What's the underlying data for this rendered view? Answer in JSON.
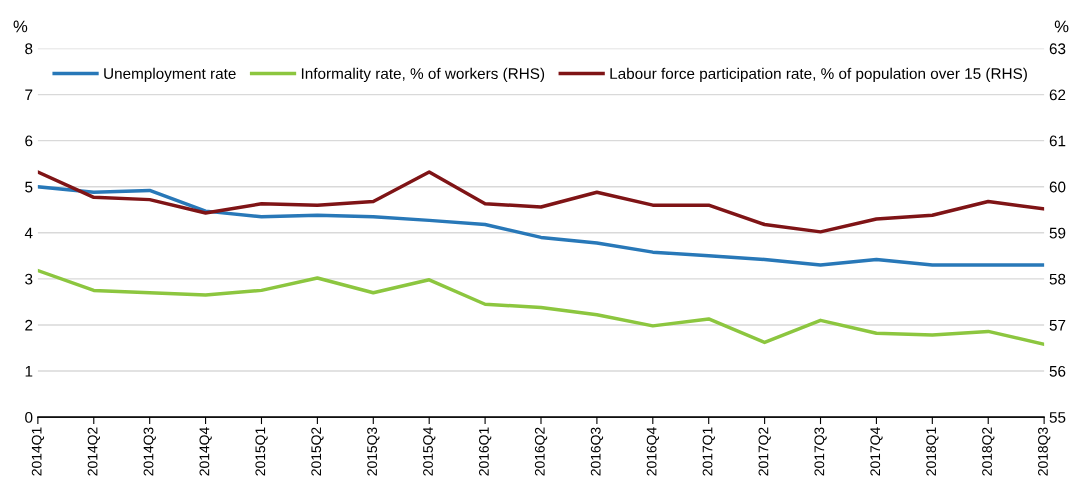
{
  "chart_data": {
    "type": "line",
    "ylabel": "%",
    "y2label": "%",
    "categories": [
      "2014Q1",
      "2014Q2",
      "2014Q3",
      "2014Q4",
      "2015Q1",
      "2015Q2",
      "2015Q3",
      "2015Q4",
      "2016Q1",
      "2016Q2",
      "2016Q3",
      "2016Q4",
      "2017Q1",
      "2017Q2",
      "2017Q3",
      "2017Q4",
      "2018Q1",
      "2018Q2",
      "2018Q3"
    ],
    "series": [
      {
        "name": "Unemployment rate",
        "color": "#2878b8",
        "values": [
          5.0,
          4.88,
          4.92,
          4.47,
          4.35,
          4.38,
          4.35,
          4.27,
          4.18,
          3.9,
          3.78,
          3.58,
          3.5,
          3.42,
          3.3,
          3.42,
          3.3,
          3.3,
          3.3
        ]
      },
      {
        "name": "Informality rate, % of workers (RHS)",
        "color": "#8cc63f",
        "axis": "y2",
        "values": [
          58.18,
          57.75,
          57.7,
          57.65,
          57.75,
          58.02,
          57.7,
          57.98,
          57.45,
          57.38,
          57.22,
          56.98,
          57.13,
          56.62,
          57.1,
          56.82,
          56.78,
          56.86,
          56.58
        ]
      },
      {
        "name": "Labour force participation rate, % of population over 15 (RHS)",
        "color": "#7f1416",
        "axis": "y2",
        "values": [
          60.32,
          59.77,
          59.72,
          59.43,
          59.63,
          59.6,
          59.68,
          60.32,
          59.63,
          59.56,
          59.88,
          59.6,
          59.6,
          59.18,
          59.02,
          59.3,
          59.38,
          59.68,
          59.52
        ]
      }
    ],
    "ylim": [
      0,
      8
    ],
    "yticks": [
      0,
      1,
      2,
      3,
      4,
      5,
      6,
      7,
      8
    ],
    "y2lim": [
      55,
      63
    ],
    "y2ticks": [
      55,
      56,
      57,
      58,
      59,
      60,
      61,
      62,
      63
    ],
    "grid": "y",
    "legend": "top",
    "marker": "none",
    "line_style": "solid"
  }
}
